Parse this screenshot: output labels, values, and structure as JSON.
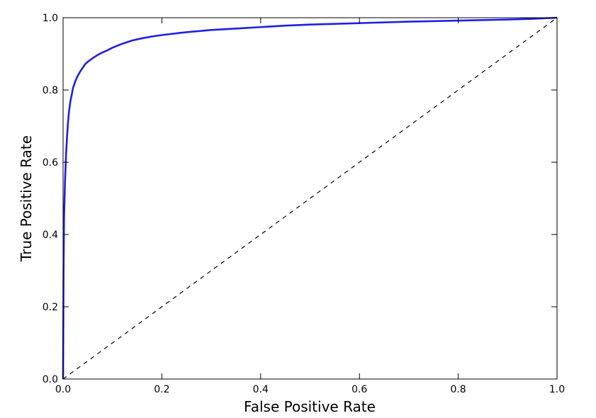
{
  "chart_data": {
    "type": "line",
    "title": "",
    "xlabel": "False Positive Rate",
    "ylabel": "True Positive Rate",
    "xlim": [
      0.0,
      1.0
    ],
    "ylim": [
      0.0,
      1.0
    ],
    "x_ticks": [
      "0.0",
      "0.2",
      "0.4",
      "0.6",
      "0.8",
      "1.0"
    ],
    "y_ticks": [
      "0.0",
      "0.2",
      "0.4",
      "0.6",
      "0.8",
      "1.0"
    ],
    "grid": false,
    "legend": "none",
    "series": [
      {
        "color": "#1f1fe6",
        "style": "solid",
        "x": [
          0.0,
          0.001,
          0.002,
          0.004,
          0.006,
          0.008,
          0.01,
          0.012,
          0.015,
          0.018,
          0.02,
          0.025,
          0.03,
          0.035,
          0.04,
          0.045,
          0.05,
          0.06,
          0.07,
          0.08,
          0.09,
          0.1,
          0.12,
          0.14,
          0.16,
          0.18,
          0.2,
          0.25,
          0.3,
          0.35,
          0.4,
          0.45,
          0.5,
          0.6,
          0.7,
          0.8,
          0.9,
          0.95,
          1.0
        ],
        "y": [
          0.0,
          0.3,
          0.45,
          0.55,
          0.62,
          0.67,
          0.71,
          0.74,
          0.77,
          0.79,
          0.805,
          0.825,
          0.84,
          0.852,
          0.862,
          0.872,
          0.878,
          0.888,
          0.897,
          0.904,
          0.91,
          0.917,
          0.928,
          0.937,
          0.943,
          0.948,
          0.952,
          0.96,
          0.966,
          0.97,
          0.974,
          0.978,
          0.981,
          0.985,
          0.989,
          0.992,
          0.995,
          0.997,
          1.0
        ]
      },
      {
        "color": "#000000",
        "style": "dashed",
        "x": [
          0.0,
          1.0
        ],
        "y": [
          0.0,
          1.0
        ]
      }
    ]
  }
}
